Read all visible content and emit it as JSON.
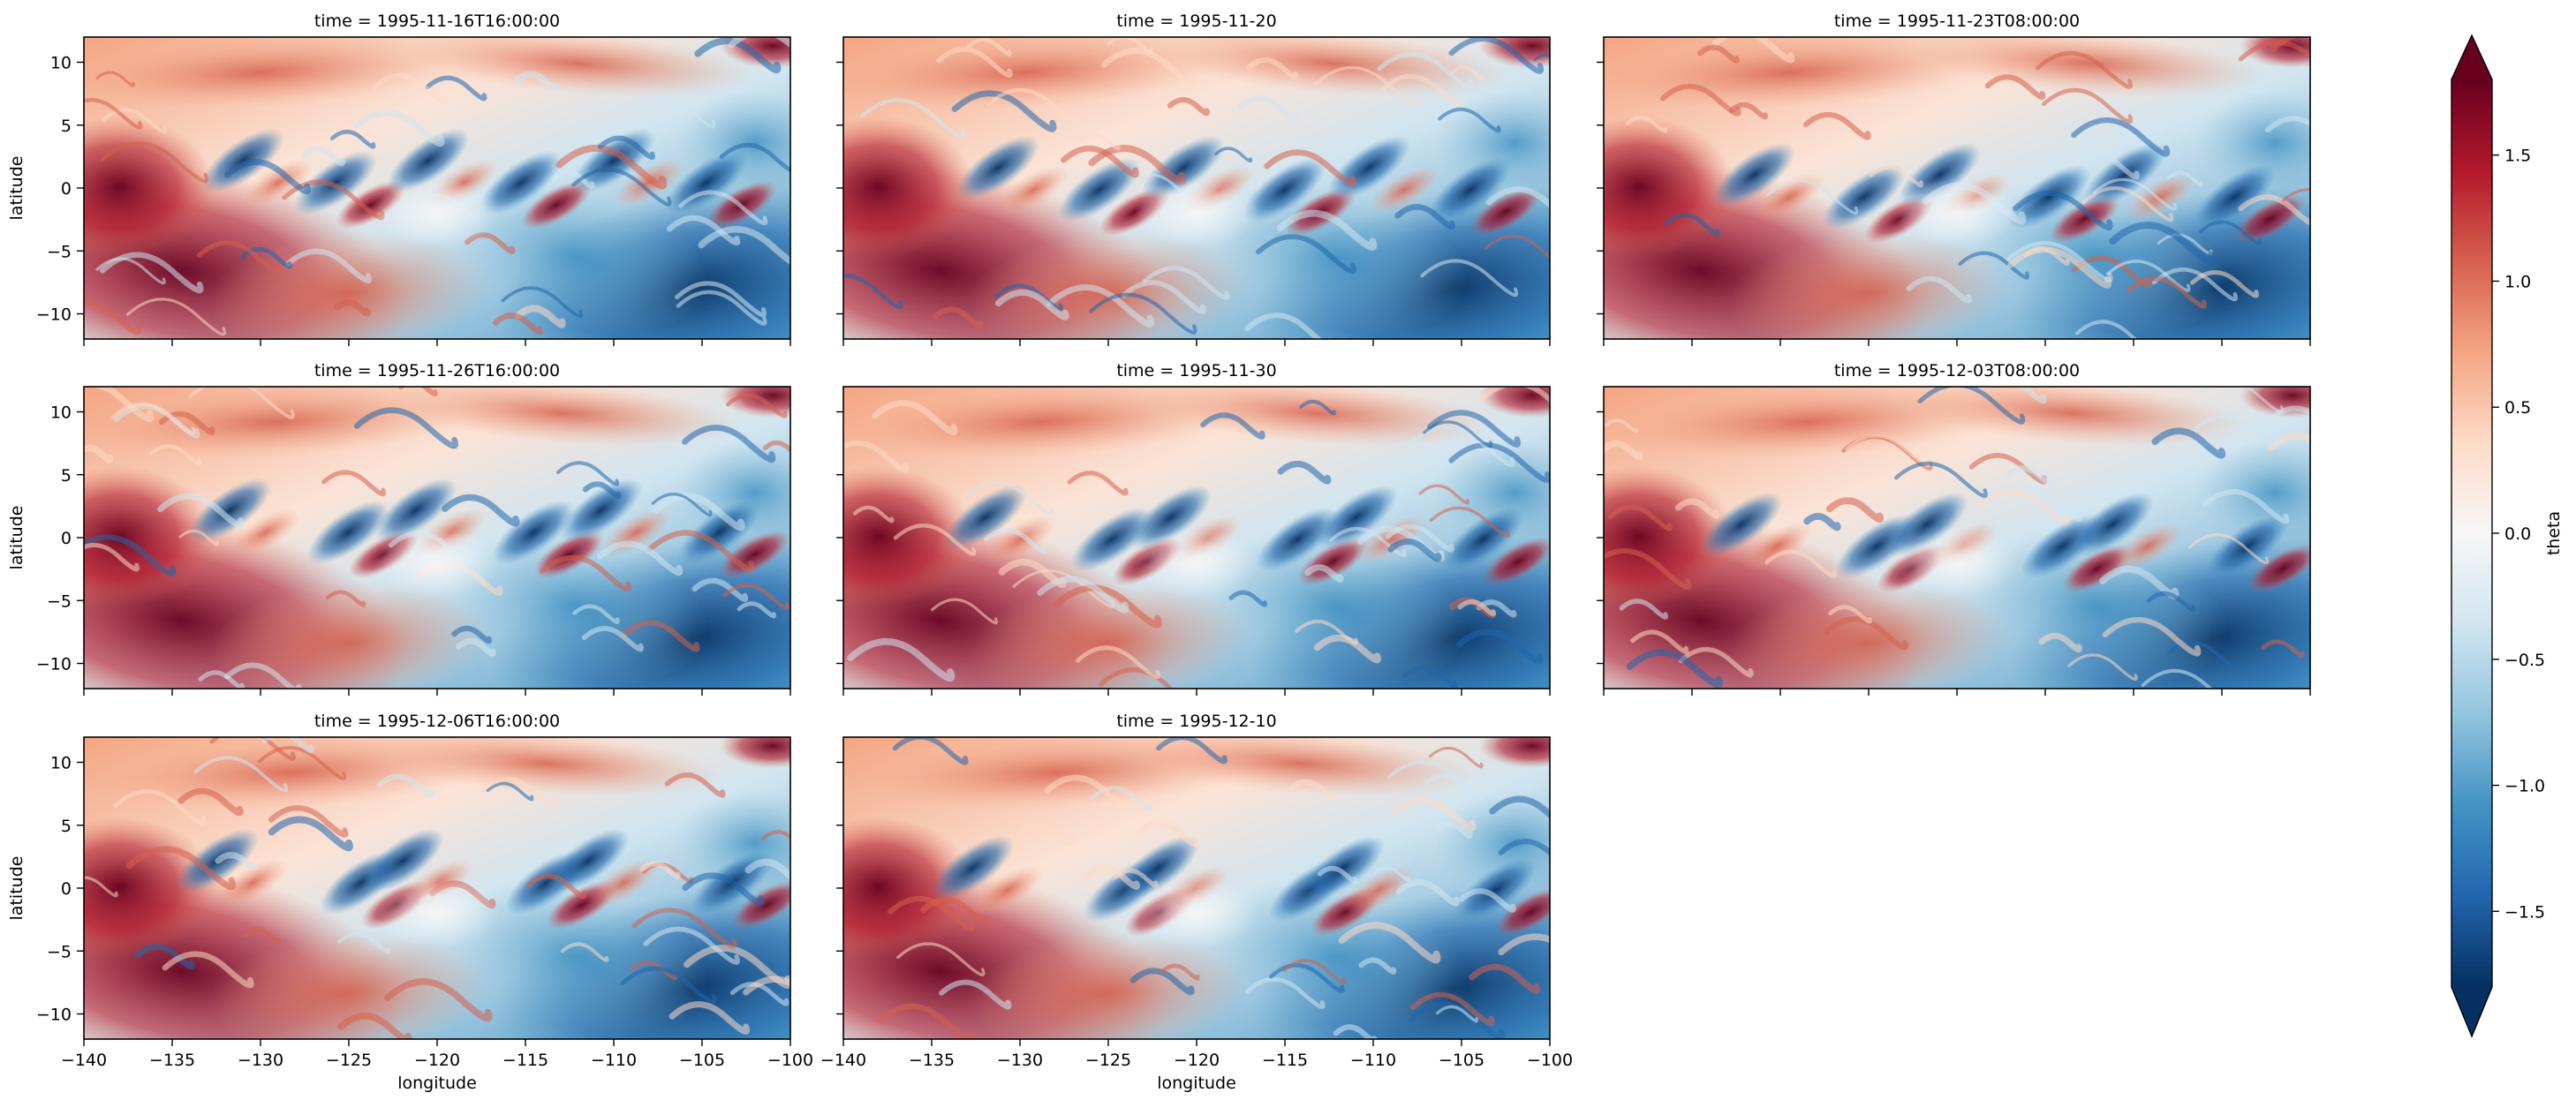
{
  "chart_data": {
    "type": "heatmap",
    "variable": "theta",
    "xlabel": "longitude",
    "ylabel": "latitude",
    "xlim": [
      -140,
      -100
    ],
    "ylim": [
      -12,
      12
    ],
    "xticks": [
      -140,
      -135,
      -130,
      -125,
      -120,
      -115,
      -110,
      -105,
      -100
    ],
    "xtick_labels": [
      "−140",
      "−135",
      "−130",
      "−125",
      "−120",
      "−115",
      "−110",
      "−105",
      "−100"
    ],
    "yticks": [
      10,
      5,
      0,
      -5,
      -10
    ],
    "ytick_labels": [
      "10",
      "5",
      "0",
      "−5",
      "−10"
    ],
    "panels": [
      {
        "title": "time = 1995-11-16T16:00:00"
      },
      {
        "title": "time = 1995-11-20"
      },
      {
        "title": "time = 1995-11-23T08:00:00"
      },
      {
        "title": "time = 1995-11-26T16:00:00"
      },
      {
        "title": "time = 1995-11-30"
      },
      {
        "title": "time = 1995-12-03T08:00:00"
      },
      {
        "title": "time = 1995-12-06T16:00:00"
      },
      {
        "title": "time = 1995-12-10"
      }
    ],
    "layout": {
      "rows": 3,
      "cols": 3
    },
    "colorbar": {
      "label": "theta",
      "colormap": "RdBu_r",
      "vmin": -1.8,
      "vmax": 1.8,
      "extend": "both",
      "ticks": [
        1.5,
        1.0,
        0.5,
        0.0,
        -0.5,
        -1.0,
        -1.5
      ],
      "tick_labels": [
        "1.5",
        "1.0",
        "0.5",
        "0.0",
        "−0.5",
        "−1.0",
        "−1.5"
      ]
    },
    "colors": {
      "high": "#67001f",
      "mid": "#f7f7f7",
      "low": "#053061"
    },
    "grid": false
  }
}
